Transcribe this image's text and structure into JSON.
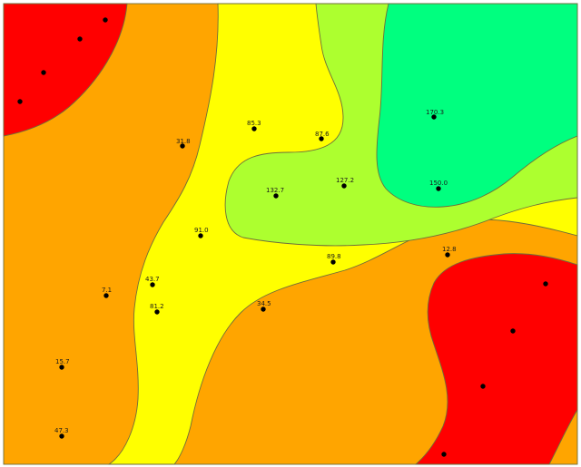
{
  "colors": {
    "background_frame": "#ffffff",
    "class_lowest": "#ff0000",
    "class_low": "#ffa500",
    "class_mid": "#ffff00",
    "class_high": "#adff2f",
    "class_highest": "#00ff7f",
    "contour_line": "#6e6e3a",
    "point": "#000000"
  },
  "points": [
    {
      "label": "31.8"
    },
    {
      "label": "85.3"
    },
    {
      "label": "87.6"
    },
    {
      "label": "132.7"
    },
    {
      "label": "127.2"
    },
    {
      "label": "170.3"
    },
    {
      "label": "150.0"
    },
    {
      "label": "91.0"
    },
    {
      "label": "89.8"
    },
    {
      "label": "12.8"
    },
    {
      "label": "7.1"
    },
    {
      "label": "43.7"
    },
    {
      "label": "81.2"
    },
    {
      "label": "34.5"
    },
    {
      "label": "15.7"
    },
    {
      "label": "47.3"
    }
  ]
}
